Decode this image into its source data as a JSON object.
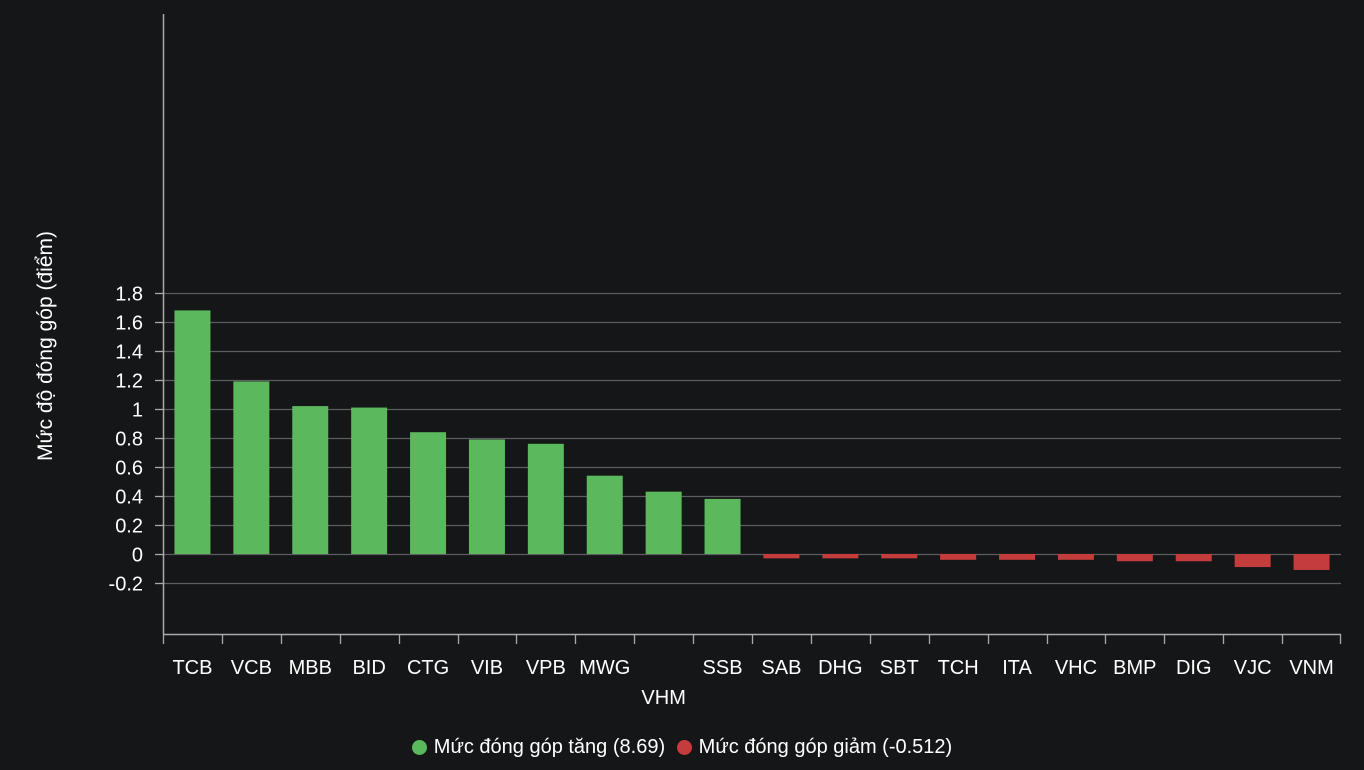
{
  "colors": {
    "background": "#151618",
    "gridline": "#5c5d60",
    "axis": "#a9aaad",
    "text": "#ffffff",
    "positive": "#5cb85c",
    "negative": "#c43c3c"
  },
  "chart_data": {
    "type": "bar",
    "ylabel": "Mức độ đóng góp (điểm)",
    "xlabel": "",
    "title": "",
    "ylim": [
      -0.28,
      1.84
    ],
    "yticks": [
      -0.2,
      0,
      0.2,
      0.4,
      0.6,
      0.8,
      1,
      1.2,
      1.4,
      1.6,
      1.8
    ],
    "ytick_labels": [
      "-0.2",
      "0",
      "0.2",
      "0.4",
      "0.6",
      "0.8",
      "1",
      "1.2",
      "1.4",
      "1.6",
      "1.8"
    ],
    "grid": true,
    "legend_position": "bottom-center",
    "categories": [
      "TCB",
      "VCB",
      "MBB",
      "BID",
      "CTG",
      "VIB",
      "VPB",
      "MWG",
      "VHM",
      "SSB",
      "SAB",
      "DHG",
      "SBT",
      "TCH",
      "ITA",
      "VHC",
      "BMP",
      "DIG",
      "VJC",
      "VNM"
    ],
    "staggered_labels": [
      "VHM"
    ],
    "values": [
      1.68,
      1.19,
      1.02,
      1.01,
      0.84,
      0.79,
      0.76,
      0.54,
      0.43,
      0.38,
      -0.03,
      -0.03,
      -0.03,
      -0.04,
      -0.04,
      -0.04,
      -0.05,
      -0.05,
      -0.09,
      -0.11
    ],
    "series": [
      {
        "name": "Mức đóng góp tăng (8.69)",
        "color": "#5cb85c",
        "sign": "positive"
      },
      {
        "name": "Mức đóng góp giảm (-0.512)",
        "color": "#c43c3c",
        "sign": "negative"
      }
    ]
  },
  "legend": {
    "positive_label": "Mức đóng góp tăng (8.69)",
    "negative_label": "Mức đóng góp giảm (-0.512)"
  }
}
